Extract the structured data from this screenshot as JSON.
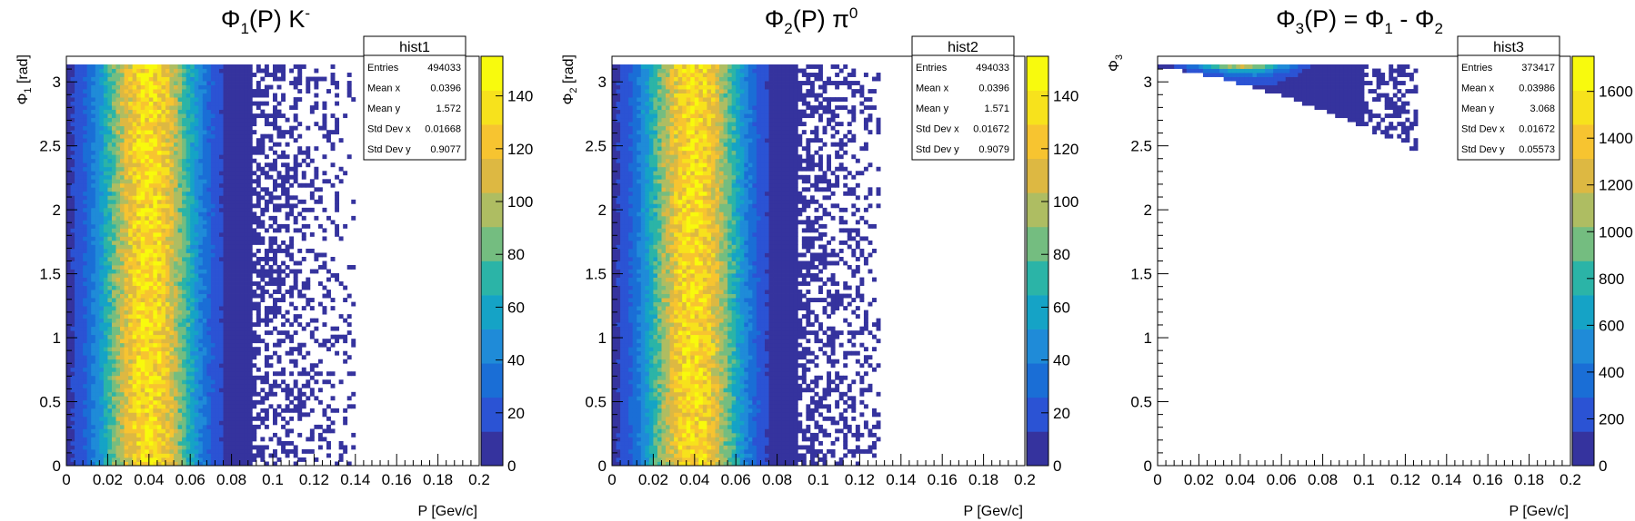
{
  "colors": {
    "palette": [
      "#35339e",
      "#2b53d4",
      "#1a6ed6",
      "#1f8bd8",
      "#15a3c6",
      "#2bb4a7",
      "#74bd80",
      "#aebd62",
      "#ddb842",
      "#f7c430",
      "#f7e21c",
      "#f8fa0d"
    ],
    "frame": "#000000",
    "background": "#ffffff"
  },
  "chart_data": [
    {
      "type": "heatmap",
      "title_main": "Φ",
      "title_sub": "1",
      "title_rest": "(P) K",
      "title_sup": "-",
      "xlabel": "P [Gev/c]",
      "ylabel_main": "Φ",
      "ylabel_sub": "1",
      "ylabel_rest": " [rad]",
      "xlim": [
        0,
        0.2
      ],
      "ylim": [
        0,
        3.2
      ],
      "x_ticks": [
        "0",
        "0.02",
        "0.04",
        "0.06",
        "0.08",
        "0.1",
        "0.12",
        "0.14",
        "0.16",
        "0.18",
        "0.2"
      ],
      "y_ticks": [
        "0",
        "0.5",
        "1",
        "1.5",
        "2",
        "2.5",
        "3"
      ],
      "z_max": 155,
      "z_ticks": [
        "0",
        "20",
        "40",
        "60",
        "80",
        "100",
        "120",
        "140"
      ],
      "distribution": {
        "x_mean": 0.0396,
        "x_sigma": 0.0167,
        "y_min": 0,
        "y_max": 3.14159,
        "peak": 135,
        "tail_to": 0.14
      },
      "stats": {
        "name": "hist1",
        "rows": [
          {
            "label": "Entries",
            "value": "494033"
          },
          {
            "label": "Mean x",
            "value": "0.0396"
          },
          {
            "label": "Mean y",
            "value": "1.572"
          },
          {
            "label": "Std Dev x",
            "value": "0.01668"
          },
          {
            "label": "Std Dev y",
            "value": "0.9077"
          }
        ]
      }
    },
    {
      "type": "heatmap",
      "title_main": "Φ",
      "title_sub": "2",
      "title_rest": "(P) π",
      "title_sup": "0",
      "xlabel": "P [Gev/c]",
      "ylabel_main": "Φ",
      "ylabel_sub": "2",
      "ylabel_rest": " [rad]",
      "xlim": [
        0,
        0.2
      ],
      "ylim": [
        0,
        3.2
      ],
      "x_ticks": [
        "0",
        "0.02",
        "0.04",
        "0.06",
        "0.08",
        "0.1",
        "0.12",
        "0.14",
        "0.16",
        "0.18",
        "0.2"
      ],
      "y_ticks": [
        "0",
        "0.5",
        "1",
        "1.5",
        "2",
        "2.5",
        "3"
      ],
      "z_max": 155,
      "z_ticks": [
        "0",
        "20",
        "40",
        "60",
        "80",
        "100",
        "120",
        "140"
      ],
      "distribution": {
        "x_mean": 0.0396,
        "x_sigma": 0.0167,
        "y_min": 0,
        "y_max": 3.14159,
        "peak": 135,
        "tail_to": 0.13
      },
      "stats": {
        "name": "hist2",
        "rows": [
          {
            "label": "Entries",
            "value": "494033"
          },
          {
            "label": "Mean x",
            "value": "0.0396"
          },
          {
            "label": "Mean y",
            "value": "1.571"
          },
          {
            "label": "Std Dev x",
            "value": "0.01672"
          },
          {
            "label": "Std Dev y",
            "value": "0.9079"
          }
        ]
      }
    },
    {
      "type": "heatmap",
      "title_main": "Φ",
      "title_sub": "3",
      "title_rest": "(P) = Φ",
      "title_sub2": "1",
      "title_rest2": " - Φ",
      "title_sub3": "2",
      "xlabel": "P [Gev/c]",
      "ylabel_main": "Φ",
      "ylabel_sub": "3",
      "ylabel_rest": "",
      "xlim": [
        0,
        0.2
      ],
      "ylim": [
        0,
        3.2
      ],
      "x_ticks": [
        "0",
        "0.02",
        "0.04",
        "0.06",
        "0.08",
        "0.1",
        "0.12",
        "0.14",
        "0.16",
        "0.18",
        "0.2"
      ],
      "y_ticks": [
        "0",
        "0.5",
        "1",
        "1.5",
        "2",
        "2.5",
        "3"
      ],
      "z_max": 1750,
      "z_ticks": [
        "0",
        "200",
        "400",
        "600",
        "800",
        "1000",
        "1200",
        "1400",
        "1600"
      ],
      "distribution": {
        "x_mean": 0.0396,
        "x_sigma": 0.0167,
        "y_top": 3.14159,
        "y_slope": 4.0,
        "peak": 1500,
        "tail_to": 0.125
      },
      "stats": {
        "name": "hist3",
        "rows": [
          {
            "label": "Entries",
            "value": "373417"
          },
          {
            "label": "Mean x",
            "value": "0.03986"
          },
          {
            "label": "Mean y",
            "value": "3.068"
          },
          {
            "label": "Std Dev x",
            "value": "0.01672"
          },
          {
            "label": "Std Dev y",
            "value": "0.05573"
          }
        ]
      }
    }
  ]
}
